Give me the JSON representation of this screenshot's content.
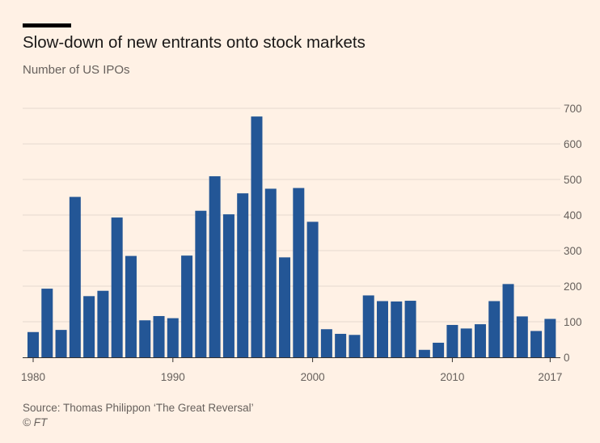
{
  "title": "Slow-down of new entrants onto stock markets",
  "subtitle": "Number of US IPOs",
  "source": "Source: Thomas Philippon ‘The Great Reversal’",
  "credit": "© FT",
  "colors": {
    "bar": "#235696",
    "background": "#fff1e5",
    "grid": "#e6d9ce",
    "axis": "#33302e",
    "tick_text": "#66605c"
  },
  "chart_data": {
    "type": "bar",
    "title": "Slow-down of new entrants onto stock markets",
    "subtitle": "Number of US IPOs",
    "xlabel": "",
    "ylabel": "",
    "x": [
      1980,
      1981,
      1982,
      1983,
      1984,
      1985,
      1986,
      1987,
      1988,
      1989,
      1990,
      1991,
      1992,
      1993,
      1994,
      1995,
      1996,
      1997,
      1998,
      1999,
      2000,
      2001,
      2002,
      2003,
      2004,
      2005,
      2006,
      2007,
      2008,
      2009,
      2010,
      2011,
      2012,
      2013,
      2014,
      2015,
      2016,
      2017
    ],
    "values": [
      71,
      193,
      77,
      451,
      172,
      187,
      393,
      285,
      104,
      116,
      110,
      286,
      412,
      509,
      402,
      461,
      677,
      474,
      281,
      476,
      381,
      79,
      66,
      63,
      174,
      158,
      157,
      159,
      21,
      41,
      91,
      81,
      93,
      158,
      206,
      115,
      74,
      108
    ],
    "ylim": [
      0,
      700
    ],
    "yticks": [
      0,
      100,
      200,
      300,
      400,
      500,
      600,
      700
    ],
    "xtick_labels": [
      "1980",
      "1990",
      "2000",
      "2010",
      "2017"
    ],
    "grid": true,
    "y_axis_side": "right"
  }
}
